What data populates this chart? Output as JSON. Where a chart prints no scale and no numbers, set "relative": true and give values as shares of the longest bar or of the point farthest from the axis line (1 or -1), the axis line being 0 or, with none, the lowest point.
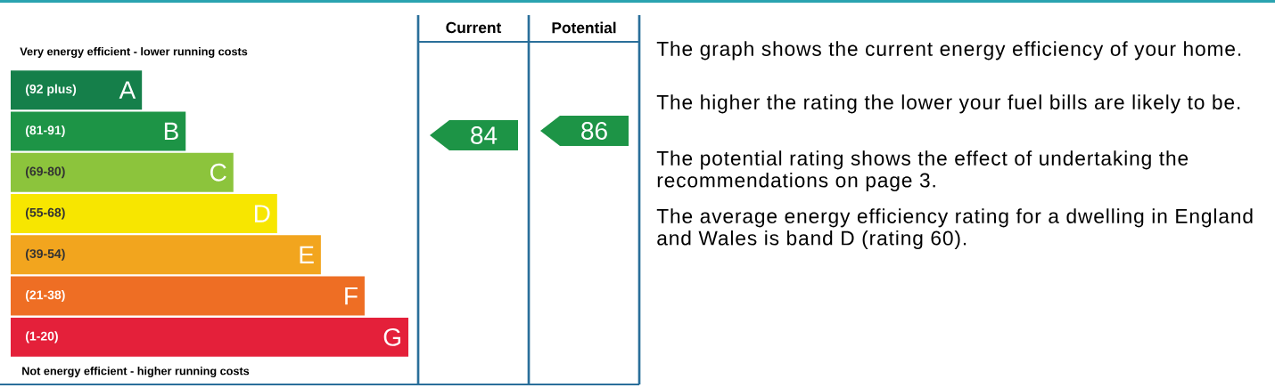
{
  "chart_data": {
    "type": "bar",
    "orientation": "horizontal",
    "relative": true,
    "title": "Very energy efficient - lower running costs",
    "xlabel": "Not energy efficient - higher running costs",
    "categories": [
      "A",
      "B",
      "C",
      "D",
      "E",
      "F",
      "G"
    ],
    "values": [
      0.33,
      0.44,
      0.56,
      0.67,
      0.78,
      0.89,
      1
    ],
    "colors": [
      "#157f4a",
      "#1d9446",
      "#8cc43c",
      "#f7e600",
      "#f2a51e",
      "#ee6e24",
      "#e4203a"
    ],
    "annotations": [
      "(92 plus)",
      "(81-91)",
      "(69-80)",
      "(55-68)",
      "(39-54)",
      "(21-38)",
      "(1-20)",
      "Current",
      "Potential",
      "84",
      "86",
      "The graph shows the current energy efficiency of your home.",
      "The higher the rating the lower your fuel bills are likely to be.",
      "The potential rating shows the effect of undertaking the recommendations on page 3.",
      "The average energy efficiency rating for a dwelling in England and Wales is band D (rating 60)."
    ]
  }
}
